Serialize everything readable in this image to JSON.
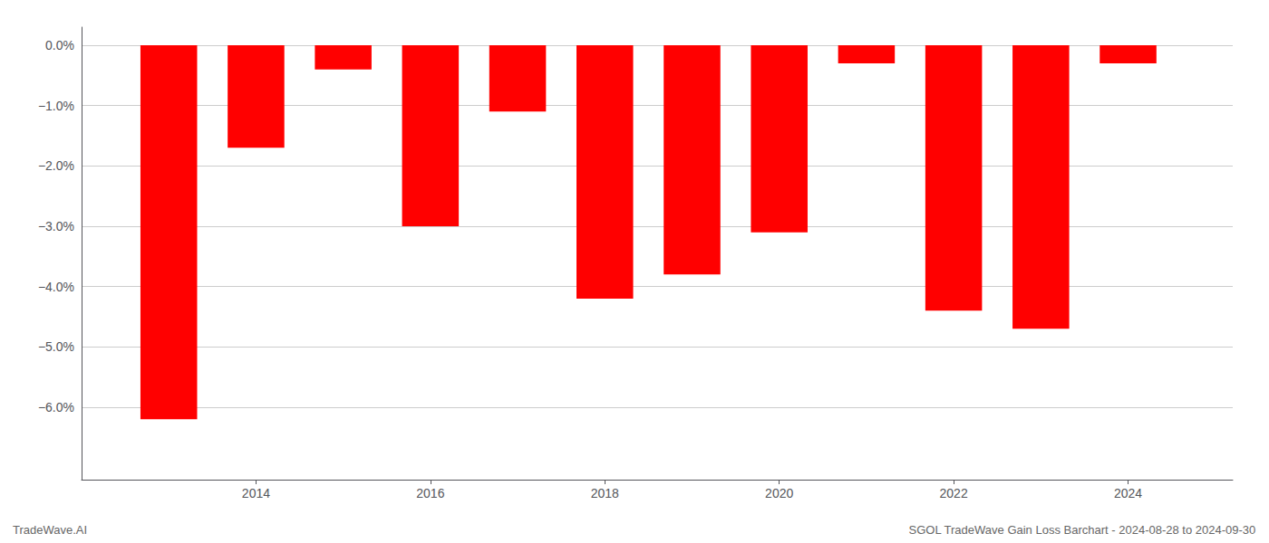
{
  "chart_data": {
    "type": "bar",
    "x": [
      2013,
      2014,
      2015,
      2016,
      2017,
      2018,
      2019,
      2020,
      2021,
      2022,
      2023,
      2024
    ],
    "values": [
      -0.062,
      -0.017,
      -0.004,
      -0.03,
      -0.011,
      -0.042,
      -0.038,
      -0.031,
      -0.003,
      -0.044,
      -0.047,
      -0.003
    ],
    "color": "#ff0000",
    "xlim": [
      2012.0,
      2025.2
    ],
    "xticks": [
      2014,
      2016,
      2018,
      2020,
      2022,
      2024
    ],
    "ylim": [
      -0.072,
      0.003
    ],
    "yticks": [
      {
        "value": 0.0,
        "label": "0.0%"
      },
      {
        "value": -0.01,
        "label": "−1.0%"
      },
      {
        "value": -0.02,
        "label": "−2.0%"
      },
      {
        "value": -0.03,
        "label": "−3.0%"
      },
      {
        "value": -0.04,
        "label": "−4.0%"
      },
      {
        "value": -0.05,
        "label": "−5.0%"
      },
      {
        "value": -0.06,
        "label": "−6.0%"
      }
    ],
    "grid": true,
    "annotations": [
      "TradeWave.AI",
      "SGOL TradeWave Gain Loss Barchart - 2024-08-28 to 2024-09-30"
    ]
  }
}
